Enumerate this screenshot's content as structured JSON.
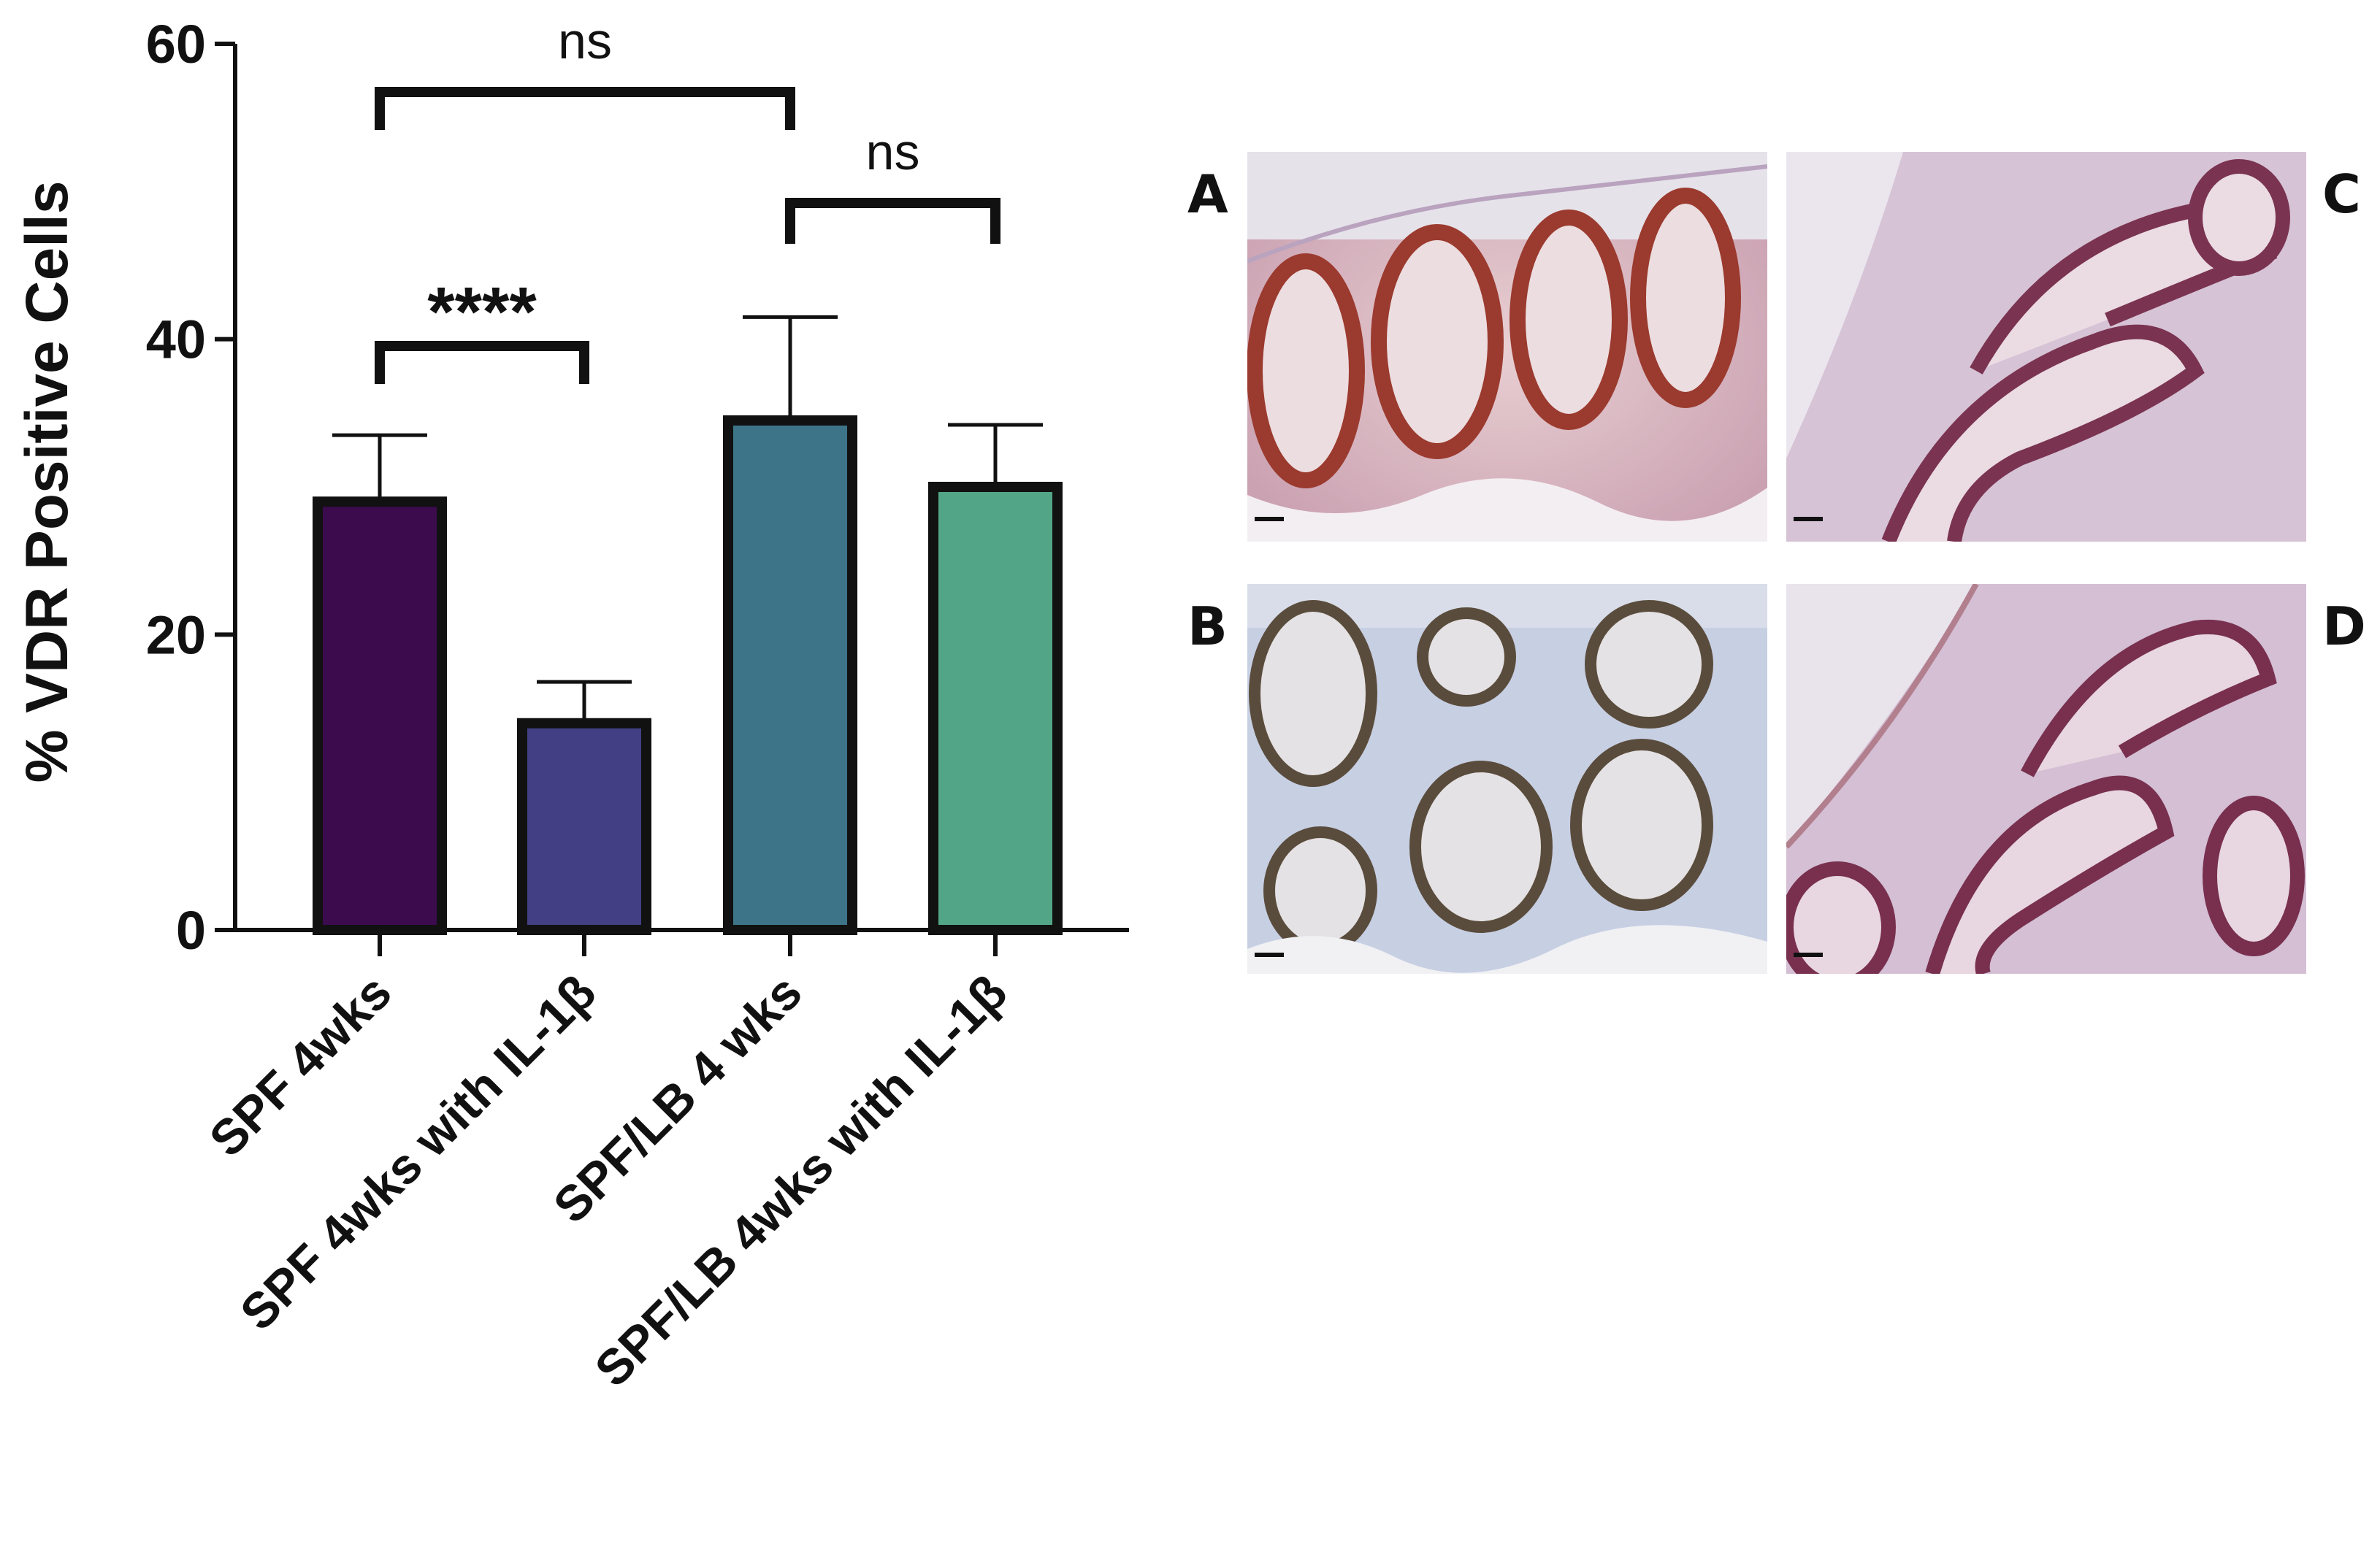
{
  "chart_data": {
    "type": "bar",
    "categories": [
      "SPF 4wks",
      "SPF 4wks with IL-1β",
      "SPF/LB 4 wks",
      "SPF/LB 4wks with IL-1β"
    ],
    "values": [
      29,
      14,
      34.5,
      30
    ],
    "errors": [
      4.5,
      2.8,
      7,
      4.2
    ],
    "colors": [
      "#3b0b4e",
      "#433f84",
      "#3d7488",
      "#52a586"
    ],
    "ylabel": "% VDR Positive Cells",
    "xlabel": "",
    "ylim": [
      0,
      60
    ],
    "yticks": [
      0,
      20,
      40,
      60
    ],
    "grid": false,
    "significance": [
      {
        "from": 0,
        "to": 1,
        "label": "****"
      },
      {
        "from": 0,
        "to": 2,
        "label": "ns"
      },
      {
        "from": 2,
        "to": 3,
        "label": "ns"
      }
    ]
  },
  "micrographs": [
    {
      "label": "A",
      "stain": "red-brown nuclear"
    },
    {
      "label": "B",
      "stain": "brown nuclear, hematoxylin blue"
    },
    {
      "label": "C",
      "stain": "red-purple nuclear"
    },
    {
      "label": "D",
      "stain": "red-purple nuclear"
    }
  ]
}
